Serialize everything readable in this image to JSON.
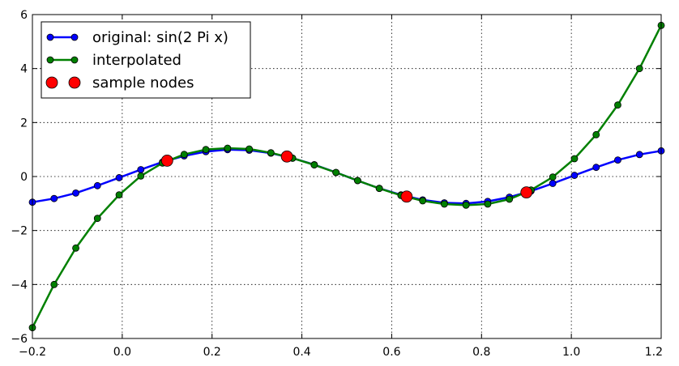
{
  "chart_data": {
    "type": "line",
    "title": "",
    "xlabel": "",
    "ylabel": "",
    "xlim": [
      -0.2,
      1.2
    ],
    "ylim": [
      -6,
      6
    ],
    "xticks": [
      -0.2,
      0.0,
      0.2,
      0.4,
      0.6,
      0.8,
      1.0,
      1.2
    ],
    "xtick_labels": [
      "−0.2",
      "0.0",
      "0.2",
      "0.4",
      "0.6",
      "0.8",
      "1.0",
      "1.2"
    ],
    "yticks": [
      -6,
      -4,
      -2,
      0,
      2,
      4,
      6
    ],
    "ytick_labels": [
      "−6",
      "−4",
      "−2",
      "0",
      "2",
      "4",
      "6"
    ],
    "grid": true,
    "legend_position": "top-left",
    "x": [
      -0.2,
      -0.1517,
      -0.1034,
      -0.0552,
      -0.0069,
      0.0414,
      0.0897,
      0.1379,
      0.1862,
      0.2345,
      0.2828,
      0.331,
      0.3793,
      0.4276,
      0.4759,
      0.5241,
      0.5724,
      0.6207,
      0.669,
      0.7172,
      0.7655,
      0.8138,
      0.8621,
      0.9103,
      0.9586,
      1.0069,
      1.0552,
      1.1034,
      1.1517,
      1.2
    ],
    "series": [
      {
        "name": "original: sin(2 Pi x)",
        "color": "#0000ff",
        "values": [
          -0.951,
          -0.815,
          -0.612,
          -0.339,
          -0.043,
          0.256,
          0.537,
          0.764,
          0.923,
          0.996,
          0.976,
          0.867,
          0.681,
          0.439,
          0.151,
          -0.151,
          -0.439,
          -0.681,
          -0.867,
          -0.976,
          -0.996,
          -0.923,
          -0.764,
          -0.537,
          -0.256,
          0.043,
          0.339,
          0.612,
          0.815,
          0.951
        ]
      },
      {
        "name": "interpolated",
        "color": "#008000",
        "values": [
          -5.6,
          -4.0,
          -2.65,
          -1.55,
          -0.68,
          0.02,
          0.5,
          0.82,
          1.0,
          1.05,
          1.02,
          0.88,
          0.68,
          0.43,
          0.15,
          -0.15,
          -0.44,
          -0.7,
          -0.9,
          -1.02,
          -1.06,
          -1.02,
          -0.84,
          -0.5,
          -0.02,
          0.66,
          1.55,
          2.65,
          4.0,
          5.6
        ]
      }
    ],
    "sample_nodes": {
      "name": "sample nodes",
      "color": "#ff0000",
      "x": [
        0.1,
        0.3667,
        0.6333,
        0.9
      ],
      "y": [
        0.588,
        0.743,
        -0.743,
        -0.588
      ]
    }
  }
}
